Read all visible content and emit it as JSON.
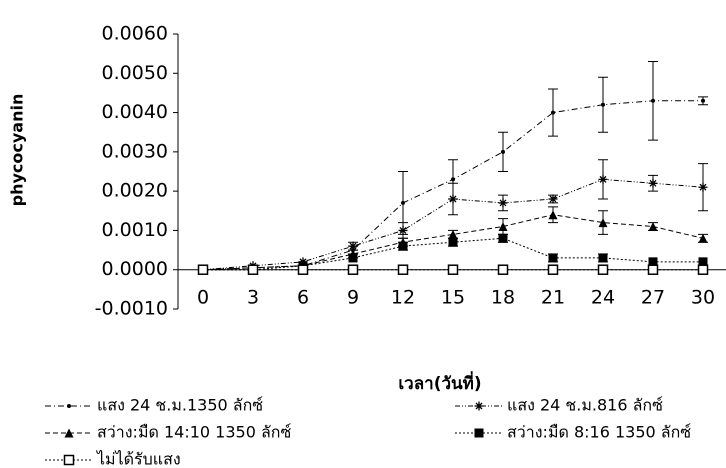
{
  "chart_data": {
    "type": "line",
    "y_label": "phycocyanin",
    "x_label": "เวลา(วันที่)",
    "x": [
      0,
      3,
      6,
      9,
      12,
      15,
      18,
      21,
      24,
      27,
      30
    ],
    "xlim": [
      -1.5,
      31.5
    ],
    "xticks": [
      0,
      3,
      6,
      9,
      12,
      15,
      18,
      21,
      24,
      27,
      30
    ],
    "ylim": [
      -0.001,
      0.006
    ],
    "yticks": [
      {
        "value": -0.001,
        "label": "-0.0010"
      },
      {
        "value": 0,
        "label": "0.0000"
      },
      {
        "value": 0.001,
        "label": "0.0010"
      },
      {
        "value": 0.002,
        "label": "0.0020"
      },
      {
        "value": 0.003,
        "label": "0.0030"
      },
      {
        "value": 0.004,
        "label": "0.0040"
      },
      {
        "value": 0.005,
        "label": "0.0050"
      },
      {
        "value": 0.006,
        "label": "0.0060"
      }
    ],
    "series": [
      {
        "name": "แสง 24 ช.ม.1350 ลักซ์",
        "color": "#000000",
        "marker": "dot",
        "dash": "6 3 1 3",
        "values": [
          0,
          5e-05,
          0.0001,
          0.0005,
          0.0017,
          0.0023,
          0.003,
          0.004,
          0.0042,
          0.0043,
          0.0043
        ],
        "errors": [
          0,
          0,
          0,
          0.0001,
          0.0008,
          0.0005,
          0.0005,
          0.0006,
          0.0007,
          0.001,
          0.0001
        ]
      },
      {
        "name": "แสง 24 ช.ม.816 ลักซ์",
        "color": "#000000",
        "marker": "star",
        "dash": "5 2 1 2 1 2",
        "values": [
          0,
          0.0001,
          0.0002,
          0.0006,
          0.001,
          0.0018,
          0.0017,
          0.0018,
          0.0023,
          0.0022,
          0.0021
        ],
        "errors": [
          0,
          0,
          0,
          0.0001,
          0.0002,
          0.0004,
          0.0002,
          0.0001,
          0.0005,
          0.0002,
          0.0006
        ]
      },
      {
        "name": "สว่าง:มืด 14:10 1350 ลักซ์",
        "color": "#000000",
        "marker": "triangle",
        "dash": "5 3",
        "values": [
          0,
          5e-05,
          0.0001,
          0.0004,
          0.0007,
          0.0009,
          0.0011,
          0.0014,
          0.0012,
          0.0011,
          0.0008
        ],
        "errors": [
          0,
          0,
          0,
          0.0001,
          0.0001,
          0.0001,
          0.0002,
          0.0002,
          0.0003,
          0.0001,
          0.0001
        ]
      },
      {
        "name": "สว่าง:มืด 8:16 1350 ลักซ์",
        "color": "#000000",
        "marker": "square",
        "dash": "2 2",
        "values": [
          0,
          0,
          0.0001,
          0.0003,
          0.0006,
          0.0007,
          0.0008,
          0.0003,
          0.0003,
          0.0002,
          0.0002
        ],
        "errors": [
          0,
          0,
          0,
          0,
          0.0001,
          0.0001,
          0.0001,
          0.0001,
          0.0001,
          0,
          0
        ]
      },
      {
        "name": "ไม่ได้รับแสง",
        "color": "#000000",
        "marker": "open-square",
        "dash": "2 2",
        "values": [
          0,
          0,
          0,
          0,
          0,
          0,
          0,
          0,
          0,
          0,
          0
        ]
      }
    ]
  }
}
